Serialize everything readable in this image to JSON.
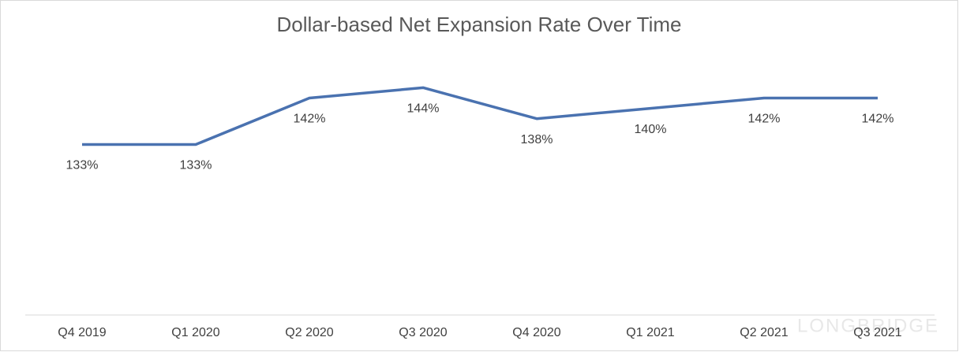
{
  "chart_data": {
    "type": "line",
    "title": "Dollar-based Net Expansion Rate Over Time",
    "categories": [
      "Q4 2019",
      "Q1 2020",
      "Q2 2020",
      "Q3 2020",
      "Q4 2020",
      "Q1 2021",
      "Q2 2021",
      "Q3 2021"
    ],
    "series": [
      {
        "name": "Dollar-based Net Expansion Rate",
        "color": "#4a72b0",
        "values": [
          133,
          133,
          142,
          144,
          138,
          140,
          142,
          142
        ],
        "value_labels": [
          "133%",
          "133%",
          "142%",
          "144%",
          "138%",
          "140%",
          "142%",
          "142%"
        ]
      }
    ],
    "ylim": [
      100,
      150
    ],
    "watermark": "LONGBRIDGE"
  }
}
